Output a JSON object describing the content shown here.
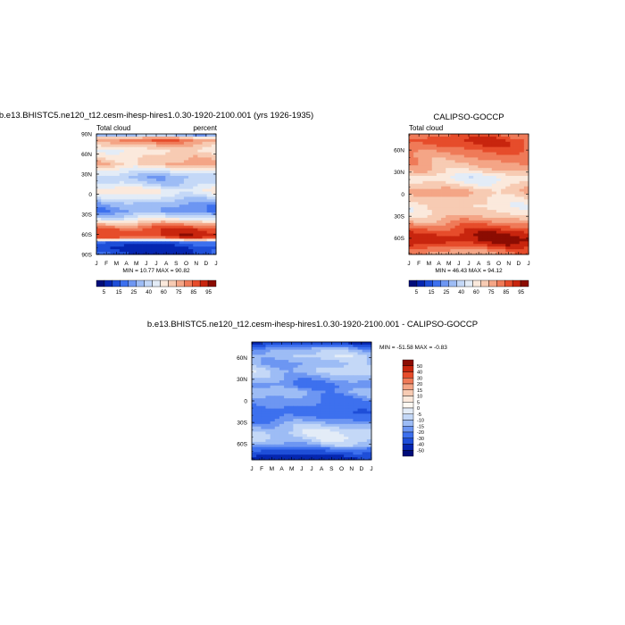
{
  "chart_data": [
    {
      "type": "heatmap",
      "title": "b.e13.BHISTC5.ne120_t12.cesm-ihesp-hires1.0.30-1920-2100.001 (yrs 1926-1935)",
      "left_label": "Total cloud",
      "right_label": "percent",
      "x_ticks": [
        "J",
        "F",
        "M",
        "A",
        "M",
        "J",
        "J",
        "A",
        "S",
        "O",
        "N",
        "D",
        "J"
      ],
      "y_ticks": [
        "90N",
        "60N",
        "30N",
        "0",
        "30S",
        "60S",
        "90S"
      ],
      "y_tick_values": [
        90,
        60,
        30,
        0,
        -30,
        -60,
        -90
      ],
      "ylim": [
        -90,
        90
      ],
      "min_max_text": "MIN =  10.77 MAX =  90.82",
      "colorbar": {
        "orientation": "horizontal",
        "labels": [
          "5",
          "15",
          "25",
          "40",
          "60",
          "75",
          "85",
          "95"
        ],
        "colors": [
          "#000d7a",
          "#0526b0",
          "#1e4ed8",
          "#3d70ee",
          "#6d96f2",
          "#9dbcf5",
          "#c4d8f7",
          "#e3ecf7",
          "#fbe9dc",
          "#f7cbb3",
          "#f4a586",
          "#ef7a58",
          "#e64c2b",
          "#c8250e",
          "#8b0c02"
        ]
      },
      "zonal_profile": [
        {
          "lat": 88,
          "value": 38
        },
        {
          "lat": 82,
          "value": 78
        },
        {
          "lat": 75,
          "value": 68
        },
        {
          "lat": 65,
          "value": 56
        },
        {
          "lat": 55,
          "value": 62
        },
        {
          "lat": 45,
          "value": 66
        },
        {
          "lat": 35,
          "value": 50
        },
        {
          "lat": 25,
          "value": 38
        },
        {
          "lat": 15,
          "value": 44
        },
        {
          "lat": 5,
          "value": 56
        },
        {
          "lat": -5,
          "value": 46
        },
        {
          "lat": -15,
          "value": 34
        },
        {
          "lat": -25,
          "value": 30
        },
        {
          "lat": -35,
          "value": 46
        },
        {
          "lat": -45,
          "value": 70
        },
        {
          "lat": -52,
          "value": 84
        },
        {
          "lat": -60,
          "value": 88
        },
        {
          "lat": -66,
          "value": 80
        },
        {
          "lat": -72,
          "value": 20
        },
        {
          "lat": -80,
          "value": 12
        },
        {
          "lat": -88,
          "value": 15
        }
      ]
    },
    {
      "type": "heatmap",
      "title": "CALIPSO-GOCCP",
      "left_label": "Total cloud",
      "right_label": "",
      "x_ticks": [
        "J",
        "F",
        "M",
        "A",
        "M",
        "J",
        "J",
        "A",
        "S",
        "O",
        "N",
        "D",
        "J"
      ],
      "y_ticks": [
        "60N",
        "30N",
        "0",
        "30S",
        "60S"
      ],
      "y_tick_values": [
        60,
        30,
        0,
        -30,
        -60
      ],
      "ylim": [
        -82,
        82
      ],
      "min_max_text": "MIN =  46.43 MAX =  94.12",
      "colorbar": {
        "orientation": "horizontal",
        "labels": [
          "5",
          "15",
          "25",
          "40",
          "60",
          "75",
          "85",
          "95"
        ],
        "colors": [
          "#000d7a",
          "#0526b0",
          "#1e4ed8",
          "#3d70ee",
          "#6d96f2",
          "#9dbcf5",
          "#c4d8f7",
          "#e3ecf7",
          "#fbe9dc",
          "#f7cbb3",
          "#f4a586",
          "#ef7a58",
          "#e64c2b",
          "#c8250e",
          "#8b0c02"
        ]
      },
      "zonal_profile": [
        {
          "lat": 80,
          "value": 80
        },
        {
          "lat": 72,
          "value": 86
        },
        {
          "lat": 62,
          "value": 80
        },
        {
          "lat": 52,
          "value": 74
        },
        {
          "lat": 42,
          "value": 70
        },
        {
          "lat": 32,
          "value": 64
        },
        {
          "lat": 22,
          "value": 52
        },
        {
          "lat": 12,
          "value": 60
        },
        {
          "lat": 4,
          "value": 68
        },
        {
          "lat": -6,
          "value": 62
        },
        {
          "lat": -16,
          "value": 58
        },
        {
          "lat": -26,
          "value": 60
        },
        {
          "lat": -36,
          "value": 70
        },
        {
          "lat": -46,
          "value": 82
        },
        {
          "lat": -54,
          "value": 90
        },
        {
          "lat": -62,
          "value": 94
        },
        {
          "lat": -70,
          "value": 86
        },
        {
          "lat": -78,
          "value": 74
        }
      ]
    },
    {
      "type": "heatmap",
      "title": "b.e13.BHISTC5.ne120_t12.cesm-ihesp-hires1.0.30-1920-2100.001 - CALIPSO-GOCCP",
      "left_label": "",
      "right_label": "",
      "x_ticks": [
        "J",
        "F",
        "M",
        "A",
        "M",
        "J",
        "J",
        "A",
        "S",
        "O",
        "N",
        "D",
        "J"
      ],
      "y_ticks": [
        "60N",
        "30N",
        "0",
        "30S",
        "60S"
      ],
      "y_tick_values": [
        60,
        30,
        0,
        -30,
        -60
      ],
      "ylim": [
        -82,
        82
      ],
      "min_max_text": "MIN = -51.58 MAX =  -0.83",
      "colorbar": {
        "orientation": "vertical",
        "labels": [
          "50",
          "40",
          "30",
          "20",
          "15",
          "10",
          "5",
          "0",
          "-5",
          "-10",
          "-15",
          "-20",
          "-30",
          "-40",
          "-50"
        ],
        "colors": [
          "#8b0c02",
          "#c8250e",
          "#e64c2b",
          "#ef7a58",
          "#f4a586",
          "#f7cbb3",
          "#fbe9dc",
          "#fdf8f2",
          "#e3ecf7",
          "#c4d8f7",
          "#9dbcf5",
          "#6d96f2",
          "#3d70ee",
          "#1e4ed8",
          "#0526b0",
          "#000d7a"
        ]
      },
      "zonal_profile": [
        {
          "lat": 80,
          "value": -38
        },
        {
          "lat": 72,
          "value": -14
        },
        {
          "lat": 62,
          "value": -9
        },
        {
          "lat": 52,
          "value": -14
        },
        {
          "lat": 42,
          "value": -9
        },
        {
          "lat": 32,
          "value": -14
        },
        {
          "lat": 22,
          "value": -20
        },
        {
          "lat": 12,
          "value": -14
        },
        {
          "lat": 4,
          "value": -18
        },
        {
          "lat": -6,
          "value": -22
        },
        {
          "lat": -16,
          "value": -26
        },
        {
          "lat": -26,
          "value": -20
        },
        {
          "lat": -36,
          "value": -11
        },
        {
          "lat": -46,
          "value": -6
        },
        {
          "lat": -54,
          "value": -8
        },
        {
          "lat": -62,
          "value": -14
        },
        {
          "lat": -70,
          "value": -30
        },
        {
          "lat": -78,
          "value": -45
        }
      ]
    }
  ]
}
